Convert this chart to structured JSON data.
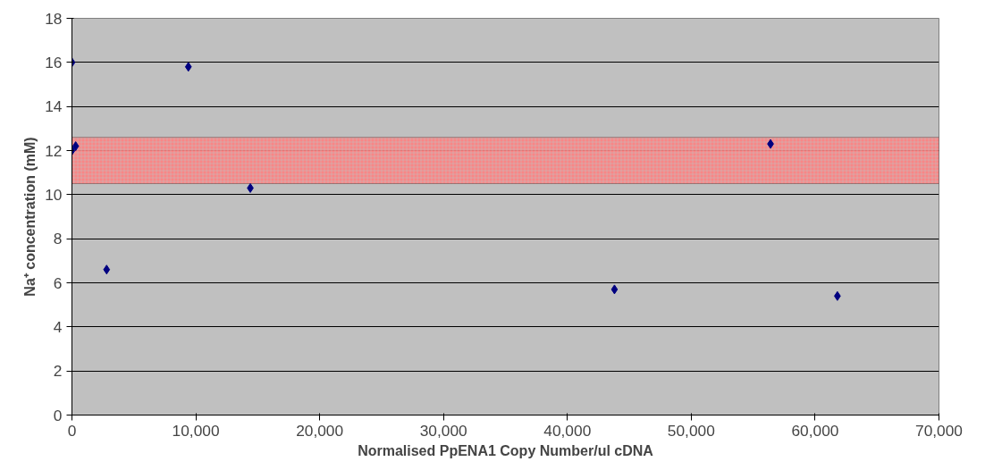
{
  "chart_data": {
    "type": "scatter",
    "xlabel": "Normalised PpENA1 Copy Number/ul cDNA",
    "ylabel": "Na⁺ concentration (mM)",
    "x": [
      0,
      0,
      300,
      2800,
      9400,
      14400,
      43800,
      56400,
      61800
    ],
    "series": [
      {
        "color": "#000080",
        "values": [
          12.0,
          16.0,
          12.2,
          6.6,
          15.8,
          10.3,
          5.7,
          12.3,
          5.4
        ]
      }
    ],
    "marker": "diamond",
    "grid": "y",
    "xlim": [
      0,
      70000
    ],
    "xticks": [
      0,
      {
        "value": 10000,
        "label": "10,000"
      },
      {
        "value": 20000,
        "label": "20,000"
      },
      {
        "value": 30000,
        "label": "30,000"
      },
      {
        "value": 40000,
        "label": "40,000"
      },
      {
        "value": 50000,
        "label": "50,000"
      },
      {
        "value": 60000,
        "label": "60,000"
      },
      {
        "value": 70000,
        "label": "70,000"
      }
    ],
    "ylim": [
      0,
      18
    ],
    "yticks": [
      0,
      2,
      4,
      6,
      8,
      10,
      12,
      14,
      16,
      18
    ],
    "bands": [
      {
        "axis": "y",
        "from": 10.5,
        "to": 12.6,
        "color": "#ff8080"
      }
    ]
  }
}
